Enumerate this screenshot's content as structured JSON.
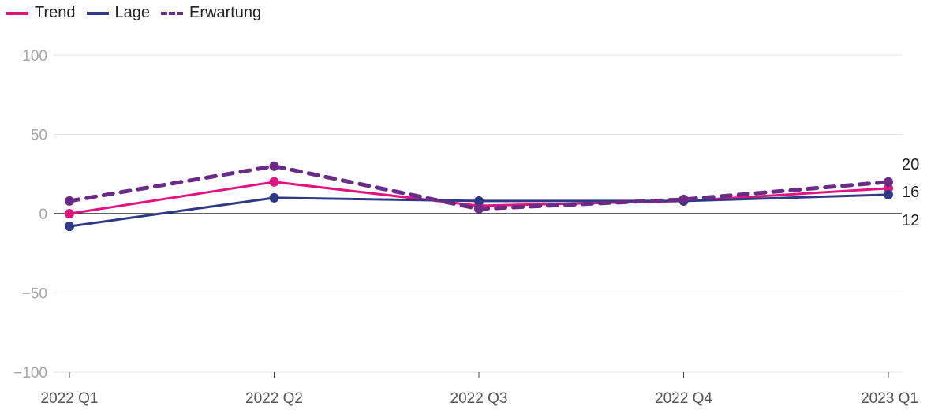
{
  "chart_data": {
    "type": "line",
    "categories": [
      "2022 Q1",
      "2022 Q2",
      "2022 Q3",
      "2022 Q4",
      "2023 Q1"
    ],
    "series": [
      {
        "name": "Trend",
        "values": [
          0,
          20,
          5,
          8,
          16
        ],
        "color": "#e0137f",
        "style": "solid"
      },
      {
        "name": "Lage",
        "values": [
          -8,
          10,
          8,
          8,
          12
        ],
        "color": "#2e3a87",
        "style": "solid"
      },
      {
        "name": "Erwartung",
        "values": [
          8,
          30,
          3,
          9,
          20
        ],
        "color": "#6a2a86",
        "style": "dashed"
      }
    ],
    "ylim": [
      -100,
      100
    ],
    "yticks": [
      100,
      50,
      0,
      -50,
      -100
    ],
    "ytick_labels": [
      "100",
      "50",
      "0",
      "−50",
      "−100"
    ],
    "end_labels": [
      "20",
      "16",
      "12"
    ],
    "legend_position": "top-left",
    "grid": true
  }
}
